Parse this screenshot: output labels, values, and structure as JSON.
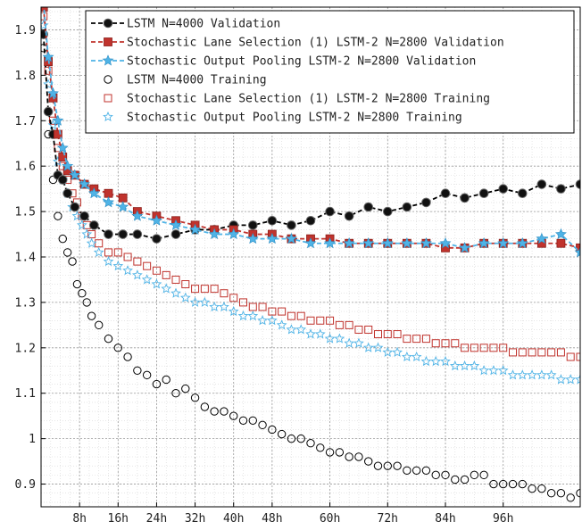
{
  "chart_data": {
    "type": "line",
    "title": "",
    "xlabel": "",
    "ylabel": "",
    "xlim": [
      0,
      112
    ],
    "ylim": [
      0.85,
      1.95
    ],
    "grid": true,
    "legend_position": "top-right",
    "xticks": [
      {
        "value": 8,
        "label": "8h"
      },
      {
        "value": 16,
        "label": "16h"
      },
      {
        "value": 24,
        "label": "24h"
      },
      {
        "value": 32,
        "label": "32h"
      },
      {
        "value": 40,
        "label": "40h"
      },
      {
        "value": 48,
        "label": "48h"
      },
      {
        "value": 60,
        "label": "60h"
      },
      {
        "value": 72,
        "label": "72h"
      },
      {
        "value": 84,
        "label": "84h"
      },
      {
        "value": 96,
        "label": "96h"
      }
    ],
    "yticks": [
      {
        "value": 0.9,
        "label": "0.9"
      },
      {
        "value": 1.0,
        "label": "1"
      },
      {
        "value": 1.1,
        "label": "1.1"
      },
      {
        "value": 1.2,
        "label": "1.2"
      },
      {
        "value": 1.3,
        "label": "1.3"
      },
      {
        "value": 1.4,
        "label": "1.4"
      },
      {
        "value": 1.5,
        "label": "1.5"
      },
      {
        "value": 1.6,
        "label": "1.6"
      },
      {
        "value": 1.7,
        "label": "1.7"
      },
      {
        "value": 1.8,
        "label": "1.8"
      },
      {
        "value": 1.9,
        "label": "1.9"
      }
    ],
    "series": [
      {
        "name": "LSTM N=4000 Validation",
        "color": "#000000",
        "line": "dashed",
        "marker": "filled-circle",
        "x": [
          0.5,
          1.5,
          2.5,
          3.5,
          4.5,
          5.5,
          7,
          9,
          11,
          14,
          17,
          20,
          24,
          28,
          32,
          36,
          40,
          44,
          48,
          52,
          56,
          60,
          64,
          68,
          72,
          76,
          80,
          84,
          88,
          92,
          96,
          100,
          104,
          108,
          112
        ],
        "y": [
          1.89,
          1.72,
          1.67,
          1.58,
          1.57,
          1.54,
          1.51,
          1.49,
          1.47,
          1.45,
          1.45,
          1.45,
          1.44,
          1.45,
          1.46,
          1.46,
          1.47,
          1.47,
          1.48,
          1.47,
          1.48,
          1.5,
          1.49,
          1.51,
          1.5,
          1.51,
          1.52,
          1.54,
          1.53,
          1.54,
          1.55,
          1.54,
          1.56,
          1.55,
          1.56
        ]
      },
      {
        "name": "Stochastic Lane Selection (1) LSTM-2 N=2800 Validation",
        "color": "#c0332d",
        "line": "dashed",
        "marker": "filled-square",
        "x": [
          0.5,
          1.5,
          2.5,
          3.5,
          4.5,
          5.5,
          7,
          9,
          11,
          14,
          17,
          20,
          24,
          28,
          32,
          36,
          40,
          44,
          48,
          52,
          56,
          60,
          64,
          68,
          72,
          76,
          80,
          84,
          88,
          92,
          96,
          100,
          104,
          108,
          112
        ],
        "y": [
          1.95,
          1.83,
          1.75,
          1.67,
          1.62,
          1.59,
          1.58,
          1.56,
          1.55,
          1.54,
          1.53,
          1.5,
          1.49,
          1.48,
          1.47,
          1.46,
          1.46,
          1.45,
          1.45,
          1.44,
          1.44,
          1.44,
          1.43,
          1.43,
          1.43,
          1.43,
          1.43,
          1.42,
          1.42,
          1.43,
          1.43,
          1.43,
          1.43,
          1.43,
          1.42
        ]
      },
      {
        "name": "Stochastic Output Pooling LSTM-2 N=2800 Validation",
        "color": "#4fb3e6",
        "line": "dashed",
        "marker": "filled-star",
        "x": [
          0.5,
          1.5,
          2.5,
          3.5,
          4.5,
          5.5,
          7,
          9,
          11,
          14,
          17,
          20,
          24,
          28,
          32,
          36,
          40,
          44,
          48,
          52,
          56,
          60,
          64,
          68,
          72,
          76,
          80,
          84,
          88,
          92,
          96,
          100,
          104,
          108,
          112
        ],
        "y": [
          1.96,
          1.84,
          1.76,
          1.7,
          1.64,
          1.6,
          1.58,
          1.56,
          1.54,
          1.52,
          1.51,
          1.49,
          1.48,
          1.47,
          1.46,
          1.45,
          1.45,
          1.44,
          1.44,
          1.44,
          1.43,
          1.43,
          1.43,
          1.43,
          1.43,
          1.43,
          1.43,
          1.43,
          1.42,
          1.43,
          1.43,
          1.43,
          1.44,
          1.45,
          1.41
        ]
      },
      {
        "name": "LSTM N=4000 Training",
        "color": "#000000",
        "line": "none",
        "marker": "open-circle",
        "x": [
          0.5,
          1.5,
          2.5,
          3.5,
          4.5,
          5.5,
          6.5,
          7.5,
          8.5,
          9.5,
          10.5,
          12,
          14,
          16,
          18,
          20,
          22,
          24,
          26,
          28,
          30,
          32,
          34,
          36,
          38,
          40,
          42,
          44,
          46,
          48,
          50,
          52,
          54,
          56,
          58,
          60,
          62,
          64,
          66,
          68,
          70,
          72,
          74,
          76,
          78,
          80,
          82,
          84,
          86,
          88,
          90,
          92,
          94,
          96,
          98,
          100,
          102,
          104,
          106,
          108,
          110,
          112
        ],
        "y": [
          1.86,
          1.67,
          1.57,
          1.49,
          1.44,
          1.41,
          1.39,
          1.34,
          1.32,
          1.3,
          1.27,
          1.25,
          1.22,
          1.2,
          1.18,
          1.15,
          1.14,
          1.12,
          1.13,
          1.1,
          1.11,
          1.09,
          1.07,
          1.06,
          1.06,
          1.05,
          1.04,
          1.04,
          1.03,
          1.02,
          1.01,
          1.0,
          1.0,
          0.99,
          0.98,
          0.97,
          0.97,
          0.96,
          0.96,
          0.95,
          0.94,
          0.94,
          0.94,
          0.93,
          0.93,
          0.93,
          0.92,
          0.92,
          0.91,
          0.91,
          0.92,
          0.92,
          0.9,
          0.9,
          0.9,
          0.9,
          0.89,
          0.89,
          0.88,
          0.88,
          0.87,
          0.88
        ]
      },
      {
        "name": "Stochastic Lane Selection (1) LSTM-2 N=2800 Training",
        "color": "#c0332d",
        "line": "none",
        "marker": "open-square",
        "x": [
          0.5,
          1.5,
          2.5,
          3.5,
          4.5,
          5.5,
          6.5,
          7.5,
          8.5,
          9.5,
          10.5,
          12,
          14,
          16,
          18,
          20,
          22,
          24,
          26,
          28,
          30,
          32,
          34,
          36,
          38,
          40,
          42,
          44,
          46,
          48,
          50,
          52,
          54,
          56,
          58,
          60,
          62,
          64,
          66,
          68,
          70,
          72,
          74,
          76,
          78,
          80,
          82,
          84,
          86,
          88,
          90,
          92,
          94,
          96,
          98,
          100,
          102,
          104,
          106,
          108,
          110,
          112
        ],
        "y": [
          1.93,
          1.81,
          1.7,
          1.64,
          1.6,
          1.57,
          1.54,
          1.52,
          1.49,
          1.47,
          1.45,
          1.43,
          1.41,
          1.41,
          1.4,
          1.39,
          1.38,
          1.37,
          1.36,
          1.35,
          1.34,
          1.33,
          1.33,
          1.33,
          1.32,
          1.31,
          1.3,
          1.29,
          1.29,
          1.28,
          1.28,
          1.27,
          1.27,
          1.26,
          1.26,
          1.26,
          1.25,
          1.25,
          1.24,
          1.24,
          1.23,
          1.23,
          1.23,
          1.22,
          1.22,
          1.22,
          1.21,
          1.21,
          1.21,
          1.2,
          1.2,
          1.2,
          1.2,
          1.2,
          1.19,
          1.19,
          1.19,
          1.19,
          1.19,
          1.19,
          1.18,
          1.18
        ]
      },
      {
        "name": "Stochastic Output Pooling LSTM-2 N=2800 Training",
        "color": "#4fb3e6",
        "line": "none",
        "marker": "open-star",
        "x": [
          0.5,
          1.5,
          2.5,
          3.5,
          4.5,
          5.5,
          6.5,
          7.5,
          8.5,
          9.5,
          10.5,
          12,
          14,
          16,
          18,
          20,
          22,
          24,
          26,
          28,
          30,
          32,
          34,
          36,
          38,
          40,
          42,
          44,
          46,
          48,
          50,
          52,
          54,
          56,
          58,
          60,
          62,
          64,
          66,
          68,
          70,
          72,
          74,
          76,
          78,
          80,
          82,
          84,
          86,
          88,
          90,
          92,
          94,
          96,
          98,
          100,
          102,
          104,
          106,
          108,
          110,
          112
        ],
        "y": [
          1.91,
          1.78,
          1.69,
          1.61,
          1.57,
          1.54,
          1.51,
          1.49,
          1.47,
          1.45,
          1.43,
          1.41,
          1.39,
          1.38,
          1.37,
          1.36,
          1.35,
          1.34,
          1.33,
          1.32,
          1.31,
          1.3,
          1.3,
          1.29,
          1.29,
          1.28,
          1.27,
          1.27,
          1.26,
          1.26,
          1.25,
          1.24,
          1.24,
          1.23,
          1.23,
          1.22,
          1.22,
          1.21,
          1.21,
          1.2,
          1.2,
          1.19,
          1.19,
          1.18,
          1.18,
          1.17,
          1.17,
          1.17,
          1.16,
          1.16,
          1.16,
          1.15,
          1.15,
          1.15,
          1.14,
          1.14,
          1.14,
          1.14,
          1.14,
          1.13,
          1.13,
          1.13
        ]
      }
    ]
  }
}
